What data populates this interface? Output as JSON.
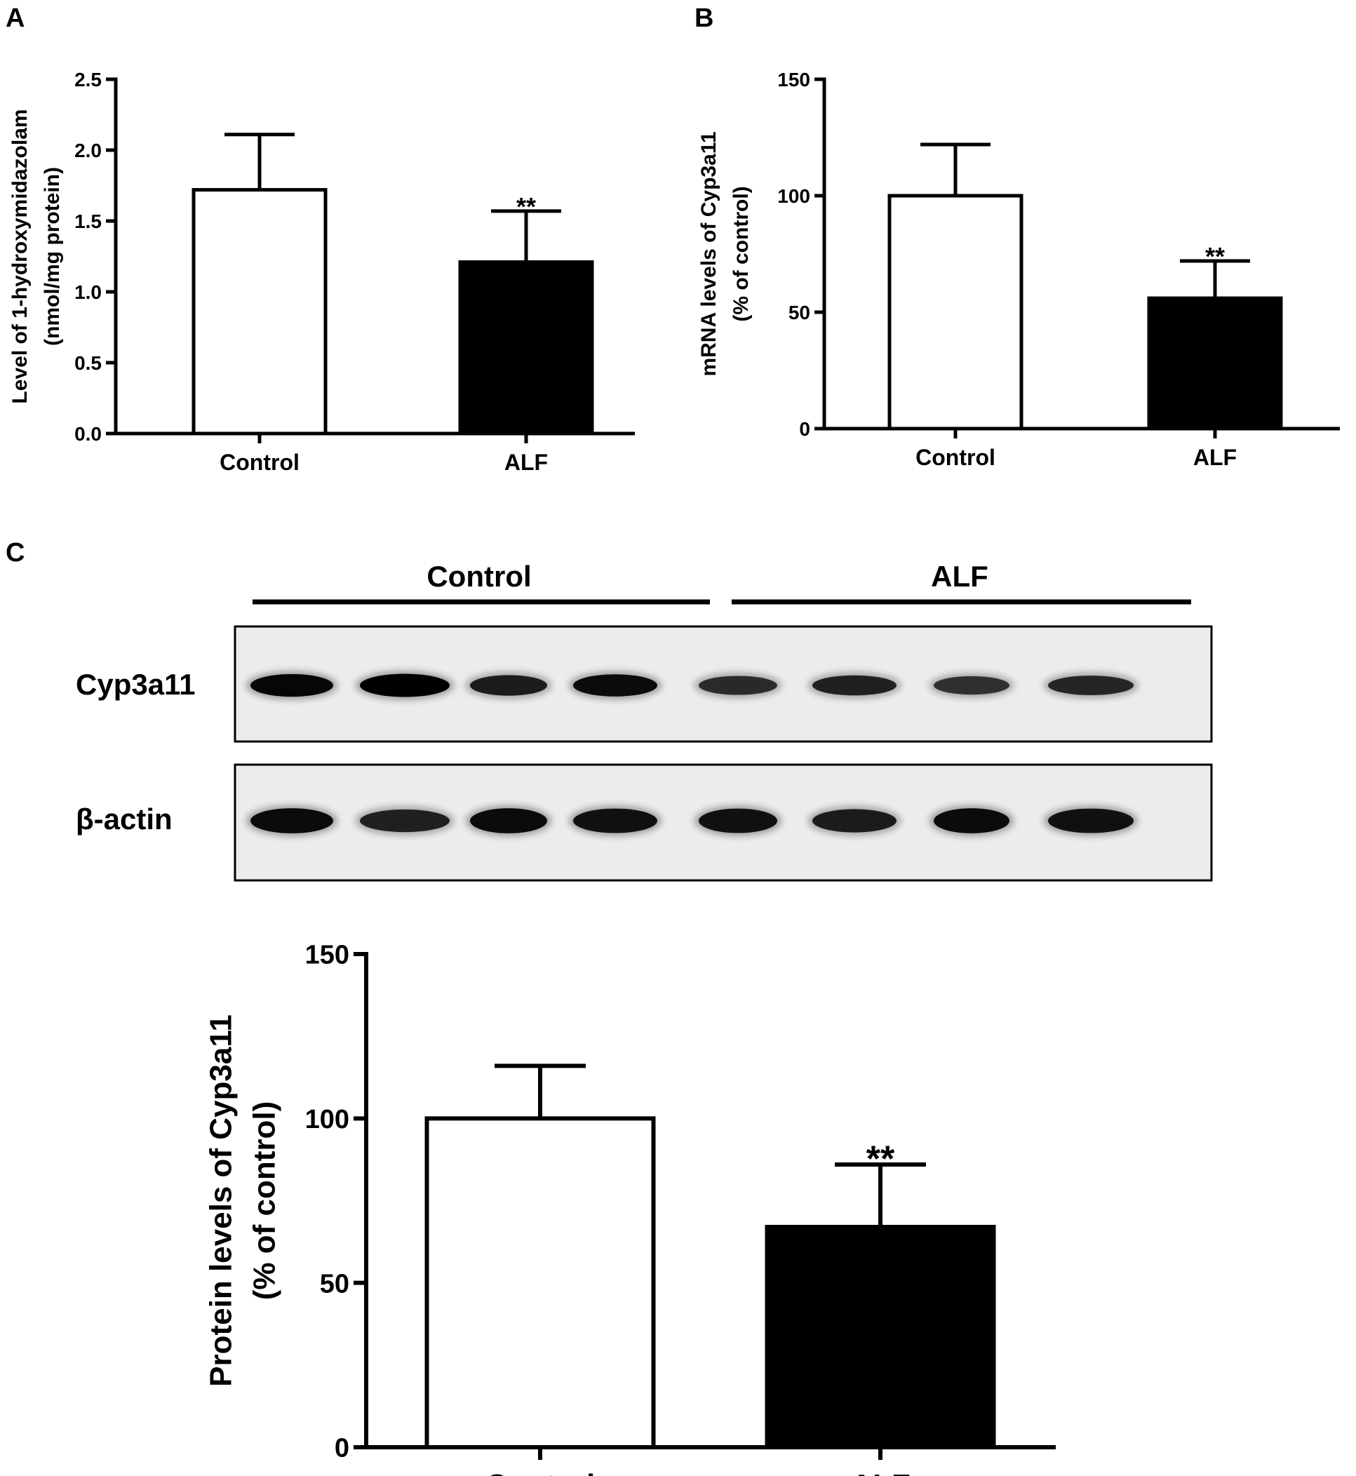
{
  "chart_data": [
    {
      "panel": "A",
      "type": "bar",
      "categories": [
        "Control",
        "ALF"
      ],
      "values": [
        1.72,
        1.21
      ],
      "error_upper": [
        2.11,
        1.57
      ],
      "fills": [
        "#ffffff",
        "#000000"
      ],
      "significance": [
        "",
        "**"
      ],
      "ylabel": [
        "Level of 1-hydroxymidazolam",
        "(nmol/mg protein)"
      ],
      "ylim": [
        0,
        2.5
      ],
      "yticks": [
        "0.0",
        "0.5",
        "1.0",
        "1.5",
        "2.0",
        "2.5"
      ],
      "yticks_values": [
        0,
        0.5,
        1.0,
        1.5,
        2.0,
        2.5
      ]
    },
    {
      "panel": "B",
      "type": "bar",
      "categories": [
        "Control",
        "ALF"
      ],
      "values": [
        100,
        56
      ],
      "error_upper": [
        122,
        72
      ],
      "fills": [
        "#ffffff",
        "#000000"
      ],
      "significance": [
        "",
        "**"
      ],
      "ylabel": [
        "mRNA levels of Cyp3a11",
        "(% of control)"
      ],
      "ylim": [
        0,
        150
      ],
      "yticks": [
        "0",
        "50",
        "100",
        "150"
      ],
      "yticks_values": [
        0,
        50,
        100,
        150
      ]
    },
    {
      "panel": "C",
      "type": "bar",
      "categories": [
        "Control",
        "ALF"
      ],
      "values": [
        100,
        67
      ],
      "error_upper": [
        116,
        86
      ],
      "fills": [
        "#ffffff",
        "#000000"
      ],
      "significance": [
        "",
        "**"
      ],
      "ylabel": [
        "Protein levels of Cyp3a11",
        "(% of control)"
      ],
      "ylim": [
        0,
        150
      ],
      "yticks": [
        "0",
        "50",
        "100",
        "150"
      ],
      "yticks_values": [
        0,
        50,
        100,
        150
      ]
    }
  ],
  "blot": {
    "panel": "C",
    "group_labels": [
      "Control",
      "ALF"
    ],
    "rows": [
      {
        "label": "Cyp3a11",
        "band_intensity": [
          0.95,
          1.0,
          0.75,
          0.9,
          0.6,
          0.7,
          0.55,
          0.65
        ]
      },
      {
        "label": "β-actin",
        "band_intensity": [
          0.9,
          0.7,
          0.9,
          0.85,
          0.85,
          0.75,
          0.9,
          0.85
        ]
      }
    ]
  }
}
